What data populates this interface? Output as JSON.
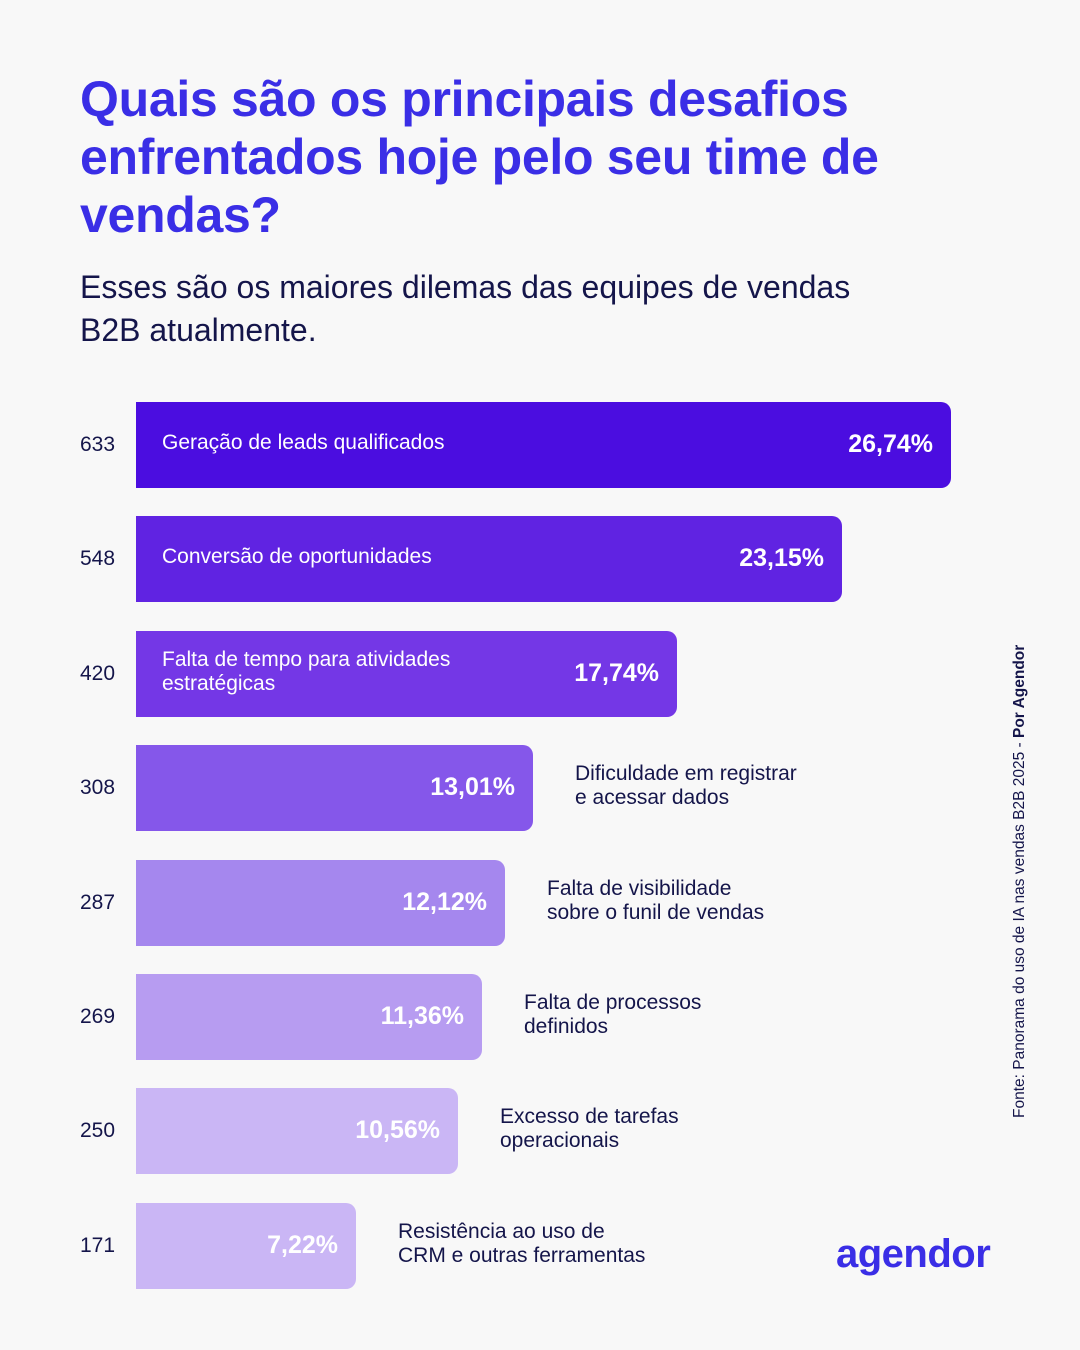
{
  "header": {
    "title": "Quais são os principais desafios enfrentados hoje pelo seu time de vendas?",
    "subtitle": "Esses são os maiores dilemas das equipes de vendas B2B atualmente."
  },
  "source": {
    "prefix": "Fonte: Panorama do uso de IA nas vendas B2B 2025 - ",
    "author": "Por Agendor"
  },
  "brand": {
    "logo_text": "agendor",
    "color": "#3a2ee6"
  },
  "chart_data": {
    "type": "bar",
    "orientation": "horizontal",
    "title": "Quais são os principais desafios enfrentados hoje pelo seu time de vendas?",
    "subtitle": "Esses são os maiores dilemas das equipes de vendas B2B atualmente.",
    "xlabel": "",
    "ylabel": "",
    "xlim": [
      0,
      26.74
    ],
    "grid": false,
    "legend": "none",
    "categories": [
      "Geração de leads qualificados",
      "Conversão de oportunidades",
      "Falta de tempo para atividades\nestratégicas",
      "Dificuldade em registrar\ne acessar dados",
      "Falta de visibilidade\nsobre o funil de vendas",
      "Falta de processos\ndefinidos",
      "Excesso de tarefas\noperacionais",
      "Resistência ao uso de\nCRM e outras ferramentas"
    ],
    "counts": [
      633,
      548,
      420,
      308,
      287,
      269,
      250,
      171
    ],
    "values": [
      26.74,
      23.15,
      17.74,
      13.01,
      12.12,
      11.36,
      10.56,
      7.22
    ],
    "value_labels": [
      "26,74%",
      "23,15%",
      "17,74%",
      "13,01%",
      "12,12%",
      "11,36%",
      "10,56%",
      "7,22%"
    ],
    "label_position": [
      "inside",
      "inside",
      "inside",
      "outside",
      "outside",
      "outside",
      "outside",
      "outside"
    ],
    "colors": [
      "#4b0de0",
      "#6023e2",
      "#7437e6",
      "#8557ea",
      "#a587ee",
      "#b79cf1",
      "#cab6f5",
      "#cab6f5"
    ]
  }
}
